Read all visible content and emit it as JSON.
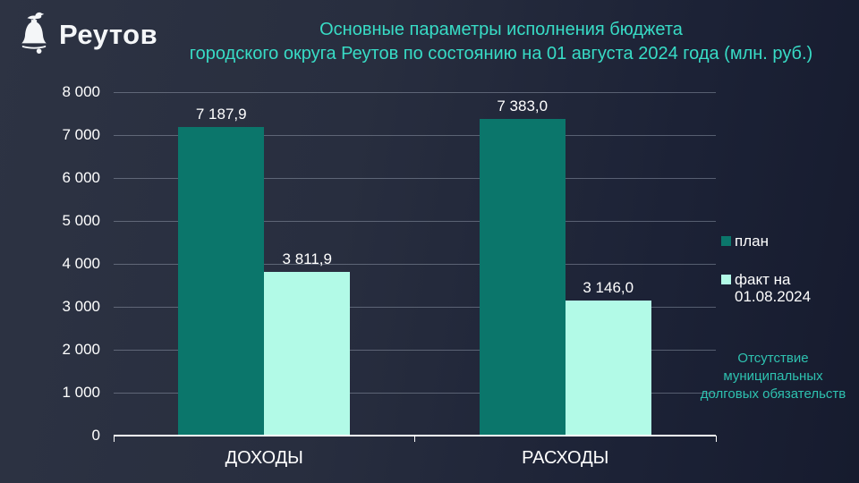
{
  "brand": {
    "name": "Реутов",
    "logo_icon": "bell-with-bird-icon"
  },
  "title": {
    "line1": "Основные параметры исполнения бюджета",
    "line2": "городского округа Реутов по состоянию на 01 августа 2024 года (млн. руб.)"
  },
  "note": {
    "lines": [
      "Отсутствие",
      "муниципальных",
      "долговых обязательств"
    ]
  },
  "colors": {
    "background_left": "#2d3343",
    "background_right": "#161b2e",
    "title_text": "#38dcc6",
    "note_text": "#2ec2b0",
    "plan_bar": "#0b766b",
    "fact_bar": "#b2fae7",
    "axis_text": "#ffffff",
    "gridline": "#aab2c3",
    "axis_line": "#ffffff"
  },
  "chart_data": {
    "type": "bar",
    "title": "Основные параметры исполнения бюджета городского округа Реутов по состоянию на 01 августа 2024 года (млн. руб.)",
    "categories": [
      "ДОХОДЫ",
      "РАСХОДЫ"
    ],
    "series": [
      {
        "name": "план",
        "legend_lines": [
          "план"
        ],
        "color": "#0b766b",
        "values": [
          7187.9,
          7383.0
        ],
        "labels": [
          "7 187,9",
          "7 383,0"
        ]
      },
      {
        "name": "факт на 01.08.2024",
        "legend_lines": [
          "факт на",
          "01.08.2024"
        ],
        "color": "#b2fae7",
        "values": [
          3811.9,
          3146.0
        ],
        "labels": [
          "3 811,9",
          "3 146,0"
        ]
      }
    ],
    "xlabel": "",
    "ylabel": "",
    "ylim": [
      0,
      8000
    ],
    "ytick_step": 1000,
    "ytick_labels": [
      "0",
      "1 000",
      "2 000",
      "3 000",
      "4 000",
      "5 000",
      "6 000",
      "7 000",
      "8 000"
    ],
    "grid": true,
    "legend_position": "right"
  }
}
